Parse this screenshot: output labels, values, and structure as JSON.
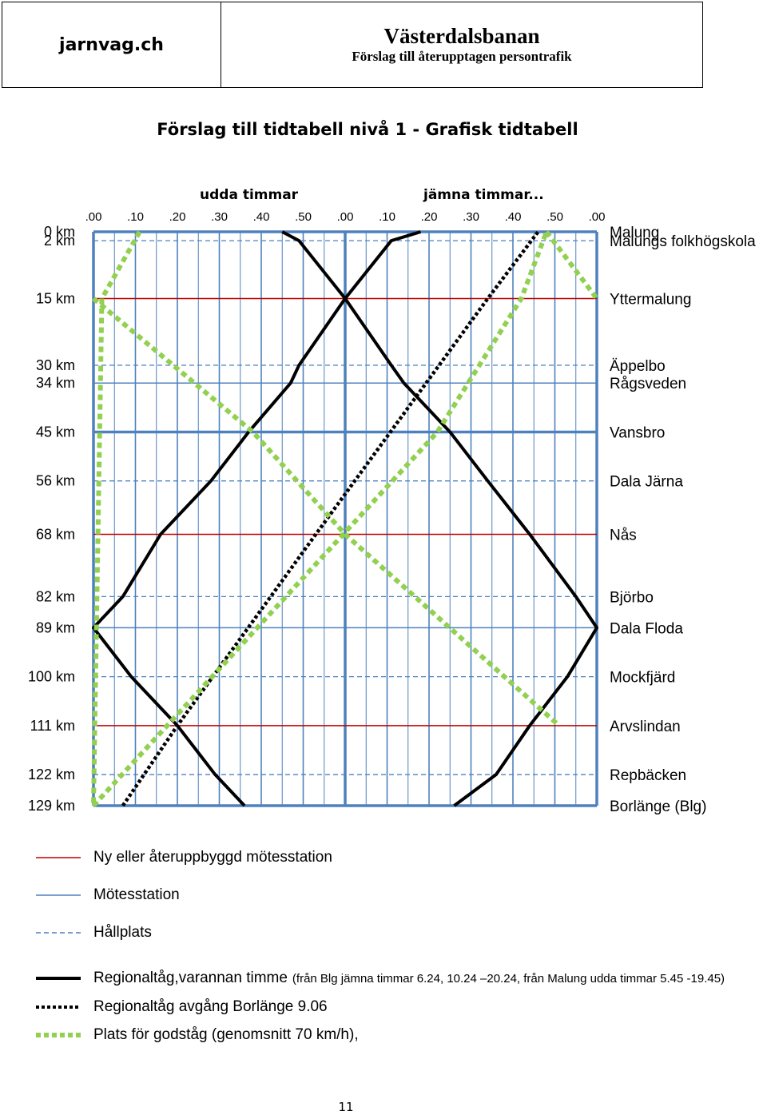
{
  "header": {
    "site": "jarnvag.ch",
    "title": "Västerdalsbanan",
    "subtitle": "Förslag till återupptagen persontrafik"
  },
  "page_title": "Förslag till tidtabell nivå 1 - Grafisk tidtabell",
  "page_number": "11",
  "colors": {
    "grid": "#4f81bd",
    "new_station": "#c00000",
    "meeting_station": "#4f81bd",
    "stop": "#4f81bd",
    "regional": "#000000",
    "freight": "#92d050"
  },
  "chart_data": {
    "type": "line",
    "title": "Förslag till tidtabell nivå 1 - Grafisk tidtabell",
    "time_groups": [
      "udda timmar",
      "jämna timmar..."
    ],
    "x_ticks": [
      ".00",
      ".10",
      ".20",
      ".30",
      ".40",
      ".50",
      ".00",
      ".10",
      ".20",
      ".30",
      ".40",
      ".50",
      ".00"
    ],
    "x_unit": "minutes over a two-hour window (0-120)",
    "xlim": [
      0,
      120
    ],
    "ylim": [
      0,
      129
    ],
    "y_inverted": true,
    "grid": true,
    "stations": [
      {
        "km": 0,
        "km_label": "0 km",
        "name": "Malung",
        "type": "mötesstation"
      },
      {
        "km": 2,
        "km_label": "2 km",
        "name": "Malungs folkhögskola",
        "type": "hållplats"
      },
      {
        "km": 15,
        "km_label": "15 km",
        "name": "Yttermalung",
        "type": "ny"
      },
      {
        "km": 30,
        "km_label": "30 km",
        "name": "Äppelbo",
        "type": "hållplats"
      },
      {
        "km": 34,
        "km_label": "34 km",
        "name": "Rågsveden",
        "type": "mötesstation"
      },
      {
        "km": 45,
        "km_label": "45 km",
        "name": "Vansbro",
        "type": "mötesstation"
      },
      {
        "km": 56,
        "km_label": "56 km",
        "name": "Dala Järna",
        "type": "hållplats"
      },
      {
        "km": 68,
        "km_label": "68 km",
        "name": "Nås",
        "type": "ny"
      },
      {
        "km": 82,
        "km_label": "82 km",
        "name": "Björbo",
        "type": "hållplats"
      },
      {
        "km": 89,
        "km_label": "89 km",
        "name": "Dala Floda",
        "type": "mötesstation"
      },
      {
        "km": 100,
        "km_label": "100 km",
        "name": "Mockfjärd",
        "type": "hållplats"
      },
      {
        "km": 111,
        "km_label": "111 km",
        "name": "Arvslindan",
        "type": "ny"
      },
      {
        "km": 122,
        "km_label": "122 km",
        "name": "Repbäcken",
        "type": "hållplats"
      },
      {
        "km": 129,
        "km_label": "129 km",
        "name": "Borlänge (Blg)",
        "type": "mötesstation"
      }
    ],
    "series": [
      {
        "name": "Regionaltåg,varannan timme",
        "style": "regional",
        "points": [
          [
            45,
            0
          ],
          [
            49,
            2
          ],
          [
            60,
            15
          ],
          [
            71,
            30
          ],
          [
            74,
            34
          ],
          [
            85,
            45
          ],
          [
            94,
            56
          ],
          [
            104,
            68
          ],
          [
            115,
            82
          ],
          [
            120,
            89
          ],
          [
            113,
            100
          ],
          [
            104,
            111
          ],
          [
            96,
            122
          ],
          [
            86,
            129
          ]
        ]
      },
      {
        "name": "Regionaltåg,varannan timme",
        "style": "regional",
        "points": [
          [
            78,
            0
          ],
          [
            71,
            2
          ],
          [
            60,
            15
          ],
          [
            49,
            30
          ],
          [
            47,
            34
          ],
          [
            37,
            45
          ],
          [
            28,
            56
          ],
          [
            16,
            68
          ],
          [
            7,
            82
          ],
          [
            0,
            89
          ],
          [
            9,
            100
          ],
          [
            20,
            111
          ],
          [
            29,
            122
          ],
          [
            36,
            129
          ]
        ]
      },
      {
        "name": "Regionaltåg avgång Borlänge 9.06",
        "style": "dotted",
        "points": [
          [
            7,
            129
          ],
          [
            20,
            111
          ],
          [
            53,
            68
          ],
          [
            94,
            15
          ],
          [
            106,
            0
          ]
        ]
      },
      {
        "name": "Plats för godståg (genomsnitt 70 km/h)",
        "style": "freight",
        "points": [
          [
            11,
            0
          ],
          [
            2,
            15
          ],
          [
            0,
            129
          ]
        ]
      },
      {
        "name": "Plats för godståg (genomsnitt 70 km/h)",
        "style": "freight",
        "points": [
          [
            0,
            15
          ],
          [
            38,
            45
          ],
          [
            60,
            68
          ],
          [
            111,
            111
          ]
        ]
      },
      {
        "name": "Plats för godståg (genomsnitt 70 km/h)",
        "style": "freight",
        "points": [
          [
            0,
            129
          ],
          [
            82,
            45
          ],
          [
            102,
            15
          ],
          [
            108,
            0
          ]
        ]
      },
      {
        "name": "Plats för godståg (genomsnitt 70 km/h)",
        "style": "freight",
        "points": [
          [
            108,
            0
          ],
          [
            120,
            15
          ]
        ]
      }
    ]
  },
  "legend": [
    {
      "style": "red",
      "label": "Ny eller återuppbyggd mötesstation",
      "note": ""
    },
    {
      "style": "blue",
      "label": "Mötesstation",
      "note": ""
    },
    {
      "style": "dashed",
      "label": "Hållplats",
      "note": ""
    },
    {
      "style": "regional",
      "label": "Regionaltåg,varannan timme",
      "note": "(från Blg jämna timmar 6.24, 10.24 –20.24, från Malung udda timmar 5.45 -19.45)"
    },
    {
      "style": "dotted",
      "label": "Regionaltåg avgång Borlänge 9.06",
      "note": ""
    },
    {
      "style": "freight",
      "label": "Plats för godståg (genomsnitt 70 km/h),",
      "note": ""
    }
  ]
}
